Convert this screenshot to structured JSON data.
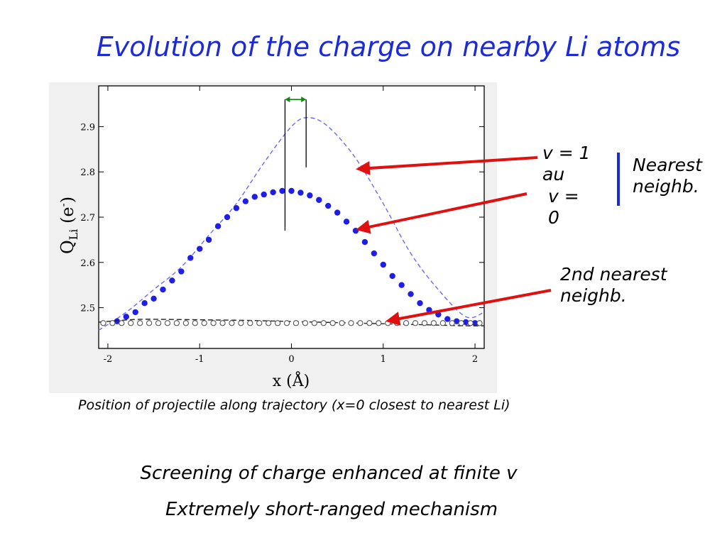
{
  "title": "Evolution of the charge on nearby Li atoms",
  "labels": {
    "v1": "v = 1 au",
    "v0": "v = 0",
    "nearest": "Nearest neighb.",
    "second": "2nd nearest neighb."
  },
  "caption": "Position of projectile along trajectory (x=0 closest to nearest Li)",
  "bottom_lines": [
    "Screening of charge enhanced at finite v",
    "Extremely short-ranged mechanism"
  ],
  "colors": {
    "title": "#1c2bd6",
    "arrow": "#e01010",
    "series_blue": "#1e1ee6",
    "series_dashed_blue": "#6a6af0",
    "double_arrow": "#118811",
    "bracket": "#1c2bd6"
  },
  "chart_data": {
    "type": "line",
    "xlabel": "x (Å)",
    "ylabel_main": "Q",
    "ylabel_sub": "Li",
    "ylabel_unit": " (e",
    "ylabel_sup": "-",
    "ylabel_close": ")",
    "xlim": [
      -2.1,
      2.1
    ],
    "ylim": [
      2.41,
      2.99
    ],
    "xticks": [
      -2,
      -1,
      0,
      1,
      2
    ],
    "xtick_labels": [
      "-2",
      "-1",
      "0",
      "1",
      "2"
    ],
    "yticks": [
      2.5,
      2.6,
      2.7,
      2.8,
      2.9
    ],
    "ytick_labels": [
      "2.5",
      "2.6",
      "2.7",
      "2.8",
      "2.9"
    ],
    "series": [
      {
        "style": "dashed-blue",
        "x": [
          -2.1,
          -1.8,
          -1.5,
          -1.2,
          -0.9,
          -0.6,
          -0.3,
          0.0,
          0.18,
          0.4,
          0.7,
          1.0,
          1.3,
          1.6,
          1.9,
          2.1
        ],
        "y": [
          2.45,
          2.49,
          2.54,
          2.59,
          2.66,
          2.73,
          2.82,
          2.9,
          2.92,
          2.9,
          2.83,
          2.73,
          2.62,
          2.54,
          2.48,
          2.49
        ]
      },
      {
        "style": "blue-dots",
        "x": [
          -1.9,
          -1.8,
          -1.7,
          -1.6,
          -1.5,
          -1.4,
          -1.3,
          -1.2,
          -1.1,
          -1.0,
          -0.9,
          -0.8,
          -0.7,
          -0.6,
          -0.5,
          -0.4,
          -0.3,
          -0.2,
          -0.1,
          0.0,
          0.1,
          0.2,
          0.3,
          0.4,
          0.5,
          0.6,
          0.7,
          0.8,
          0.9,
          1.0,
          1.1,
          1.2,
          1.3,
          1.4,
          1.5,
          1.6,
          1.7,
          1.8,
          1.9,
          2.0
        ],
        "y": [
          2.47,
          2.48,
          2.49,
          2.51,
          2.52,
          2.54,
          2.56,
          2.58,
          2.61,
          2.63,
          2.65,
          2.68,
          2.7,
          2.72,
          2.735,
          2.745,
          2.75,
          2.755,
          2.758,
          2.758,
          2.754,
          2.748,
          2.738,
          2.725,
          2.71,
          2.69,
          2.67,
          2.645,
          2.62,
          2.595,
          2.57,
          2.55,
          2.53,
          2.51,
          2.495,
          2.485,
          2.475,
          2.47,
          2.468,
          2.466
        ]
      },
      {
        "style": "dashed-black",
        "x": [
          -2.1,
          -1.7,
          -1.3,
          -0.9,
          -0.5,
          -0.1,
          0.3,
          0.7,
          1.1,
          1.5,
          1.9,
          2.1
        ],
        "y": [
          2.468,
          2.474,
          2.474,
          2.473,
          2.472,
          2.47,
          2.468,
          2.466,
          2.464,
          2.462,
          2.46,
          2.46
        ]
      },
      {
        "style": "open-circles",
        "x": [
          -2.05,
          -1.95,
          -1.85,
          -1.75,
          -1.65,
          -1.55,
          -1.45,
          -1.35,
          -1.25,
          -1.15,
          -1.05,
          -0.95,
          -0.85,
          -0.75,
          -0.65,
          -0.55,
          -0.45,
          -0.35,
          -0.25,
          -0.15,
          -0.05,
          0.05,
          0.15,
          0.25,
          0.35,
          0.45,
          0.55,
          0.65,
          0.75,
          0.85,
          0.95,
          1.05,
          1.15,
          1.25,
          1.35,
          1.45,
          1.55,
          1.65,
          1.75,
          1.85,
          1.95,
          2.05
        ],
        "y": [
          2.466,
          2.466,
          2.466,
          2.466,
          2.466,
          2.466,
          2.466,
          2.466,
          2.466,
          2.466,
          2.466,
          2.466,
          2.466,
          2.466,
          2.466,
          2.466,
          2.466,
          2.466,
          2.466,
          2.466,
          2.466,
          2.466,
          2.466,
          2.466,
          2.466,
          2.466,
          2.466,
          2.466,
          2.466,
          2.466,
          2.466,
          2.466,
          2.466,
          2.466,
          2.466,
          2.466,
          2.466,
          2.466,
          2.466,
          2.466,
          2.466,
          2.466
        ]
      }
    ],
    "annotations": {
      "vline_x": [
        -0.07,
        0.16
      ],
      "vline_y_low": [
        2.67,
        2.81
      ],
      "vline_y_top": 2.96,
      "double_arrow_y": 2.96
    }
  }
}
